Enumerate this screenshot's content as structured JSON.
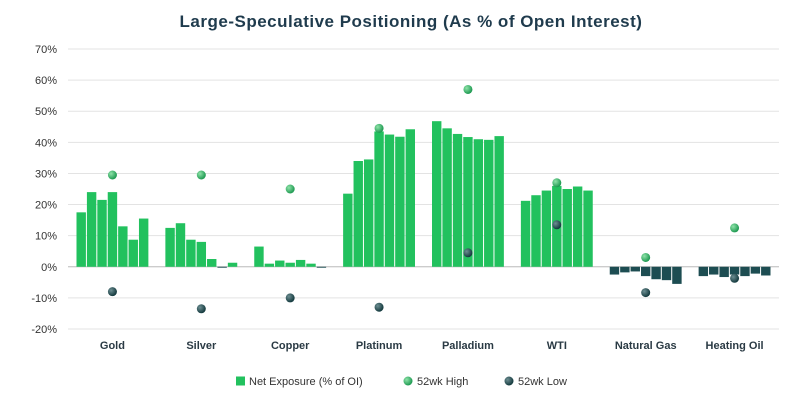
{
  "chart_data": {
    "type": "bar",
    "title": "Large-Speculative Positioning (As % of Open Interest)",
    "xlabel": "",
    "ylabel": "",
    "ylim": [
      -20,
      70
    ],
    "yticks": [
      -20,
      -10,
      0,
      10,
      20,
      30,
      40,
      50,
      60,
      70
    ],
    "ytick_labels": [
      "-20%",
      "-10%",
      "0%",
      "10%",
      "20%",
      "30%",
      "40%",
      "50%",
      "60%",
      "70%"
    ],
    "grid": true,
    "legend_position": "bottom",
    "categories": [
      "Gold",
      "Silver",
      "Copper",
      "Platinum",
      "Palladium",
      "WTI",
      "Natural Gas",
      "Heating Oil"
    ],
    "series": [
      {
        "name": "Net Exposure (% of OI)",
        "kind": "bar",
        "color_by_sign": {
          "positive": "#22c15e",
          "negative": "#1d4d52"
        },
        "values": [
          [
            17.5,
            24,
            21.5,
            24,
            13,
            8.7,
            15.5
          ],
          [
            12.5,
            14,
            8.7,
            8,
            2.5,
            -0.3,
            1.3
          ],
          [
            6.5,
            1,
            2,
            1.3,
            2.2,
            1,
            -0.3
          ],
          [
            23.5,
            34,
            34.5,
            43.5,
            42.5,
            41.8,
            44.2
          ],
          [
            46.8,
            44.5,
            42.7,
            41.7,
            41,
            40.8,
            42
          ],
          [
            21.2,
            23,
            24.5,
            26,
            25,
            25.8,
            24.5
          ],
          [
            -2.5,
            -1.8,
            -1.5,
            -3,
            -4,
            -4.3,
            -5.5
          ],
          [
            -3,
            -2.5,
            -3.3,
            -2.5,
            -3,
            -2.2,
            -2.8
          ]
        ]
      },
      {
        "name": "52wk High",
        "kind": "point",
        "color": "#2bb56a",
        "values": [
          29.5,
          29.5,
          25,
          44.5,
          57,
          27,
          3,
          12.5
        ]
      },
      {
        "name": "52wk Low",
        "kind": "point",
        "color": "#1d4d52",
        "values": [
          -8,
          -13.5,
          -10,
          -13,
          4.5,
          13.5,
          -8.3,
          -3.7
        ]
      }
    ]
  }
}
